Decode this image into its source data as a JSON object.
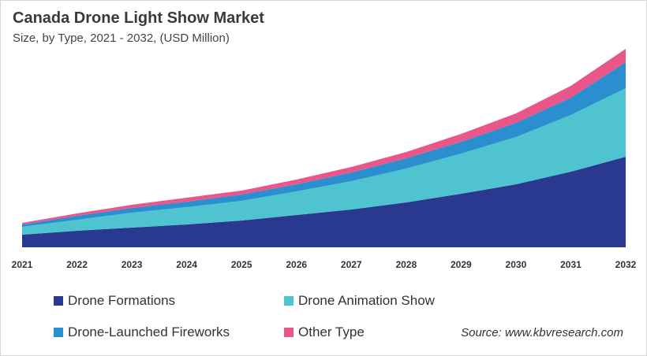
{
  "chart_data": {
    "type": "area",
    "stacked": true,
    "title": "Canada Drone Light Show Market",
    "subtitle": "Size, by Type, 2021 - 2032, (USD Million)",
    "categories": [
      "2021",
      "2022",
      "2023",
      "2024",
      "2025",
      "2026",
      "2027",
      "2028",
      "2029",
      "2030",
      "2031",
      "2032"
    ],
    "series": [
      {
        "name": "Drone Formations",
        "color": "#2a3990",
        "values": [
          16,
          21,
          25,
          29,
          34,
          41,
          48,
          57,
          68,
          80,
          96,
          115
        ]
      },
      {
        "name": "Drone Animation Show",
        "color": "#4fc3d0",
        "values": [
          10,
          14,
          19,
          22,
          25,
          30,
          36,
          43,
          51,
          60,
          72,
          87
        ]
      },
      {
        "name": "Drone-Launched Fireworks",
        "color": "#2b8fcf",
        "values": [
          3,
          5,
          6,
          7,
          8,
          9,
          11,
          13,
          15,
          18,
          22,
          33
        ]
      },
      {
        "name": "Other Type",
        "color": "#e8568a",
        "values": [
          2,
          3,
          4,
          5,
          5,
          6,
          7,
          8,
          10,
          12,
          15,
          17
        ]
      }
    ],
    "ylim": [
      0,
      260
    ],
    "y_axis_shown": false,
    "grid": false,
    "legend_position": "bottom"
  },
  "source": "Source: www.kbvresearch.com"
}
